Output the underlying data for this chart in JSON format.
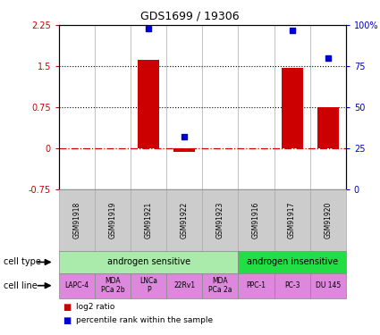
{
  "title": "GDS1699 / 19306",
  "samples": [
    "GSM91918",
    "GSM91919",
    "GSM91921",
    "GSM91922",
    "GSM91923",
    "GSM91916",
    "GSM91917",
    "GSM91920"
  ],
  "log2_ratio": [
    0.0,
    0.0,
    1.62,
    -0.07,
    0.0,
    0.0,
    1.47,
    0.75
  ],
  "percentile_rank": [
    null,
    null,
    98,
    32,
    null,
    null,
    97,
    80
  ],
  "bar_color": "#cc0000",
  "dot_color": "#0000cc",
  "cell_type_groups": [
    {
      "label": "androgen sensitive",
      "start": 0,
      "end": 4,
      "color": "#aaeaaa"
    },
    {
      "label": "androgen insensitive",
      "start": 5,
      "end": 7,
      "color": "#22dd44"
    }
  ],
  "cell_lines": [
    {
      "label": "LAPC-4",
      "sample_idx": 0
    },
    {
      "label": "MDA\nPCa 2b",
      "sample_idx": 1
    },
    {
      "label": "LNCa\nP",
      "sample_idx": 2
    },
    {
      "label": "22Rv1",
      "sample_idx": 3
    },
    {
      "label": "MDA\nPCa 2a",
      "sample_idx": 4
    },
    {
      "label": "PPC-1",
      "sample_idx": 5
    },
    {
      "label": "PC-3",
      "sample_idx": 6
    },
    {
      "label": "DU 145",
      "sample_idx": 7
    }
  ],
  "cell_line_color": "#dd88dd",
  "ylim_left": [
    -0.75,
    2.25
  ],
  "ylim_right": [
    0,
    100
  ],
  "yticks_left": [
    -0.75,
    0.0,
    0.75,
    1.5,
    2.25
  ],
  "yticks_right": [
    0,
    25,
    50,
    75,
    100
  ],
  "ytick_labels_left": [
    "-0.75",
    "0",
    "0.75",
    "1.5",
    "2.25"
  ],
  "ytick_labels_right": [
    "0",
    "25",
    "50",
    "75",
    "100%"
  ],
  "hlines": [
    0.75,
    1.5
  ],
  "hline_zero_color": "#cc0000",
  "hline_color": "#000000",
  "legend_items": [
    {
      "label": "log2 ratio",
      "color": "#cc0000"
    },
    {
      "label": "percentile rank within the sample",
      "color": "#0000cc"
    }
  ],
  "left_label_color": "#cc0000",
  "right_label_color": "#0000bb",
  "gray_box_color": "#cccccc",
  "gray_box_edge": "#aaaaaa"
}
